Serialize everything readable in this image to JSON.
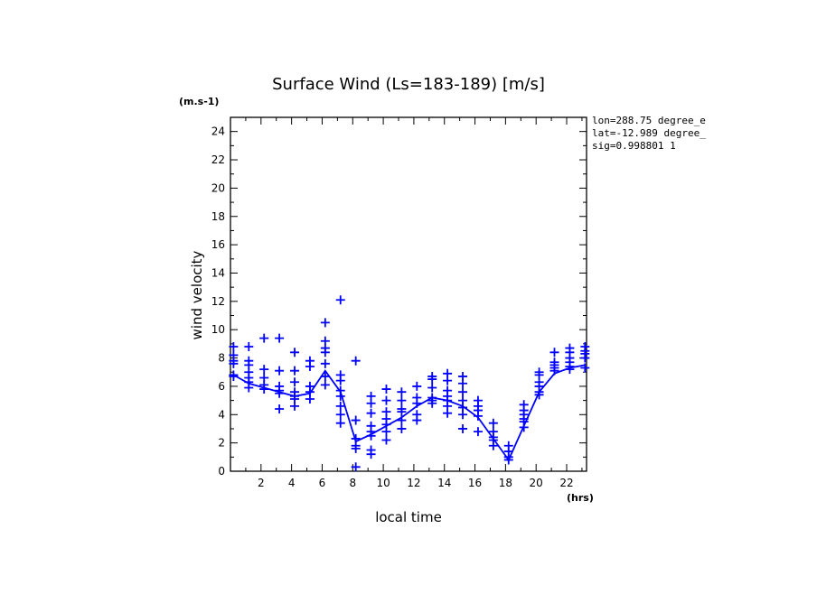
{
  "chart_data": {
    "type": "scatter",
    "title": "Surface Wind  (Ls=183-189) [m/s]",
    "ylabel": "wind velocity",
    "y_unit_label": "(m.s-1)",
    "xlabel": "local time",
    "x_unit_label": "(hrs)",
    "xlim": [
      0,
      23.3
    ],
    "ylim": [
      0,
      25
    ],
    "xticks": [
      "2",
      "4",
      "6",
      "8",
      "10",
      "12",
      "14",
      "16",
      "18",
      "20",
      "22"
    ],
    "yticks": [
      "0",
      "2",
      "4",
      "6",
      "8",
      "10",
      "12",
      "14",
      "16",
      "18",
      "20",
      "22",
      "24"
    ],
    "grid": false,
    "marker_color": "#0000ff",
    "line_color": "#0000ff",
    "annotations": [
      "lon=288.75 degree_e",
      "lat=-12.989 degree_",
      "sig=0.998801 1"
    ],
    "series": [
      {
        "marker": "plus",
        "points": [
          [
            0.2,
            8.8
          ],
          [
            0.2,
            8.2
          ],
          [
            0.2,
            7.8
          ],
          [
            0.2,
            7.6
          ],
          [
            0.2,
            6.8
          ],
          [
            0.2,
            6.7
          ],
          [
            1.2,
            8.8
          ],
          [
            1.2,
            7.8
          ],
          [
            1.2,
            7.5
          ],
          [
            1.2,
            7.0
          ],
          [
            1.2,
            6.6
          ],
          [
            1.2,
            6.3
          ],
          [
            1.2,
            5.9
          ],
          [
            2.2,
            9.4
          ],
          [
            2.2,
            7.2
          ],
          [
            2.2,
            6.6
          ],
          [
            2.2,
            6.1
          ],
          [
            2.2,
            5.8
          ],
          [
            3.2,
            9.4
          ],
          [
            3.2,
            7.1
          ],
          [
            3.2,
            6.0
          ],
          [
            3.2,
            5.7
          ],
          [
            3.2,
            5.5
          ],
          [
            3.2,
            4.4
          ],
          [
            4.2,
            8.4
          ],
          [
            4.2,
            7.1
          ],
          [
            4.2,
            6.3
          ],
          [
            4.2,
            5.6
          ],
          [
            4.2,
            5.3
          ],
          [
            4.2,
            5.1
          ],
          [
            4.2,
            4.6
          ],
          [
            5.2,
            7.8
          ],
          [
            5.2,
            7.4
          ],
          [
            5.2,
            6.0
          ],
          [
            5.2,
            5.6
          ],
          [
            5.2,
            5.1
          ],
          [
            6.2,
            10.5
          ],
          [
            6.2,
            9.2
          ],
          [
            6.2,
            8.7
          ],
          [
            6.2,
            8.4
          ],
          [
            6.2,
            7.6
          ],
          [
            6.2,
            6.7
          ],
          [
            6.2,
            6.1
          ],
          [
            7.2,
            12.1
          ],
          [
            7.2,
            6.8
          ],
          [
            7.2,
            6.4
          ],
          [
            7.2,
            5.7
          ],
          [
            7.2,
            5.3
          ],
          [
            7.2,
            4.6
          ],
          [
            7.2,
            4.0
          ],
          [
            7.2,
            3.4
          ],
          [
            8.2,
            7.8
          ],
          [
            8.2,
            3.6
          ],
          [
            8.2,
            2.3
          ],
          [
            8.2,
            1.8
          ],
          [
            8.2,
            1.6
          ],
          [
            8.2,
            0.3
          ],
          [
            9.2,
            5.3
          ],
          [
            9.2,
            4.8
          ],
          [
            9.2,
            4.1
          ],
          [
            9.2,
            3.2
          ],
          [
            9.2,
            2.8
          ],
          [
            9.2,
            2.5
          ],
          [
            9.2,
            1.5
          ],
          [
            9.2,
            1.2
          ],
          [
            10.2,
            5.8
          ],
          [
            10.2,
            5.0
          ],
          [
            10.2,
            4.2
          ],
          [
            10.2,
            3.7
          ],
          [
            10.2,
            3.3
          ],
          [
            10.2,
            2.8
          ],
          [
            10.2,
            2.2
          ],
          [
            11.2,
            5.6
          ],
          [
            11.2,
            5.0
          ],
          [
            11.2,
            4.4
          ],
          [
            11.2,
            4.2
          ],
          [
            11.2,
            3.6
          ],
          [
            11.2,
            3.0
          ],
          [
            12.2,
            6.0
          ],
          [
            12.2,
            5.2
          ],
          [
            12.2,
            4.8
          ],
          [
            12.2,
            4.0
          ],
          [
            12.2,
            3.6
          ],
          [
            13.2,
            6.7
          ],
          [
            13.2,
            6.5
          ],
          [
            13.2,
            5.9
          ],
          [
            13.2,
            5.2
          ],
          [
            13.2,
            5.0
          ],
          [
            13.2,
            4.8
          ],
          [
            14.2,
            6.9
          ],
          [
            14.2,
            6.4
          ],
          [
            14.2,
            5.7
          ],
          [
            14.2,
            5.3
          ],
          [
            14.2,
            5.0
          ],
          [
            14.2,
            4.6
          ],
          [
            14.2,
            4.1
          ],
          [
            15.2,
            6.7
          ],
          [
            15.2,
            6.2
          ],
          [
            15.2,
            5.6
          ],
          [
            15.2,
            5.0
          ],
          [
            15.2,
            4.5
          ],
          [
            15.2,
            4.0
          ],
          [
            15.2,
            3.0
          ],
          [
            16.2,
            5.0
          ],
          [
            16.2,
            4.6
          ],
          [
            16.2,
            4.3
          ],
          [
            16.2,
            3.9
          ],
          [
            16.2,
            2.8
          ],
          [
            17.2,
            3.4
          ],
          [
            17.2,
            2.8
          ],
          [
            17.2,
            2.4
          ],
          [
            17.2,
            2.2
          ],
          [
            17.2,
            1.8
          ],
          [
            18.2,
            1.8
          ],
          [
            18.2,
            1.4
          ],
          [
            18.2,
            1.0
          ],
          [
            18.2,
            0.8
          ],
          [
            19.2,
            4.7
          ],
          [
            19.2,
            4.3
          ],
          [
            19.2,
            4.0
          ],
          [
            19.2,
            3.7
          ],
          [
            19.2,
            3.5
          ],
          [
            19.2,
            3.1
          ],
          [
            20.2,
            7.0
          ],
          [
            20.2,
            6.8
          ],
          [
            20.2,
            6.3
          ],
          [
            20.2,
            6.0
          ],
          [
            20.2,
            5.6
          ],
          [
            20.2,
            5.4
          ],
          [
            21.2,
            8.4
          ],
          [
            21.2,
            7.7
          ],
          [
            21.2,
            7.5
          ],
          [
            21.2,
            7.3
          ],
          [
            21.2,
            7.1
          ],
          [
            22.2,
            8.7
          ],
          [
            22.2,
            8.4
          ],
          [
            22.2,
            8.0
          ],
          [
            22.2,
            7.7
          ],
          [
            22.2,
            7.4
          ],
          [
            22.2,
            7.2
          ],
          [
            23.2,
            8.8
          ],
          [
            23.2,
            8.5
          ],
          [
            23.2,
            8.3
          ],
          [
            23.2,
            8.0
          ],
          [
            23.2,
            7.3
          ]
        ]
      },
      {
        "marker": "line",
        "points": [
          [
            0.2,
            6.8
          ],
          [
            1.2,
            6.2
          ],
          [
            2.2,
            5.9
          ],
          [
            3.2,
            5.6
          ],
          [
            4.2,
            5.3
          ],
          [
            5.2,
            5.5
          ],
          [
            6.2,
            7.1
          ],
          [
            7.2,
            5.6
          ],
          [
            8.2,
            2.1
          ],
          [
            9.2,
            2.6
          ],
          [
            10.2,
            3.2
          ],
          [
            11.2,
            3.8
          ],
          [
            12.2,
            4.6
          ],
          [
            13.2,
            5.2
          ],
          [
            14.2,
            5.0
          ],
          [
            15.2,
            4.6
          ],
          [
            16.2,
            3.8
          ],
          [
            17.2,
            2.3
          ],
          [
            18.2,
            0.8
          ],
          [
            19.2,
            3.2
          ],
          [
            20.2,
            5.6
          ],
          [
            21.2,
            6.9
          ],
          [
            22.2,
            7.3
          ],
          [
            23.2,
            7.5
          ]
        ]
      }
    ]
  }
}
